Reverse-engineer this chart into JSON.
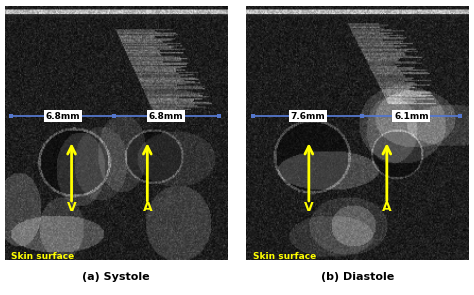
{
  "fig_width": 4.74,
  "fig_height": 2.95,
  "dpi": 100,
  "bg_color": "#ffffff",
  "panel_label_a": "(a) Systole",
  "panel_label_b": "(b) Diastole",
  "skin_surface_text": "Skin surface",
  "skin_surface_color": "#ffff00",
  "arrow_color": "#ffff00",
  "label_V": "V",
  "label_A": "A",
  "measure_left_a": "6.8mm",
  "measure_right_a": "6.8mm",
  "measure_left_b": "7.6mm",
  "measure_right_b": "6.1mm",
  "measure_line_color": "#5577cc",
  "measure_text_color": "#000000"
}
